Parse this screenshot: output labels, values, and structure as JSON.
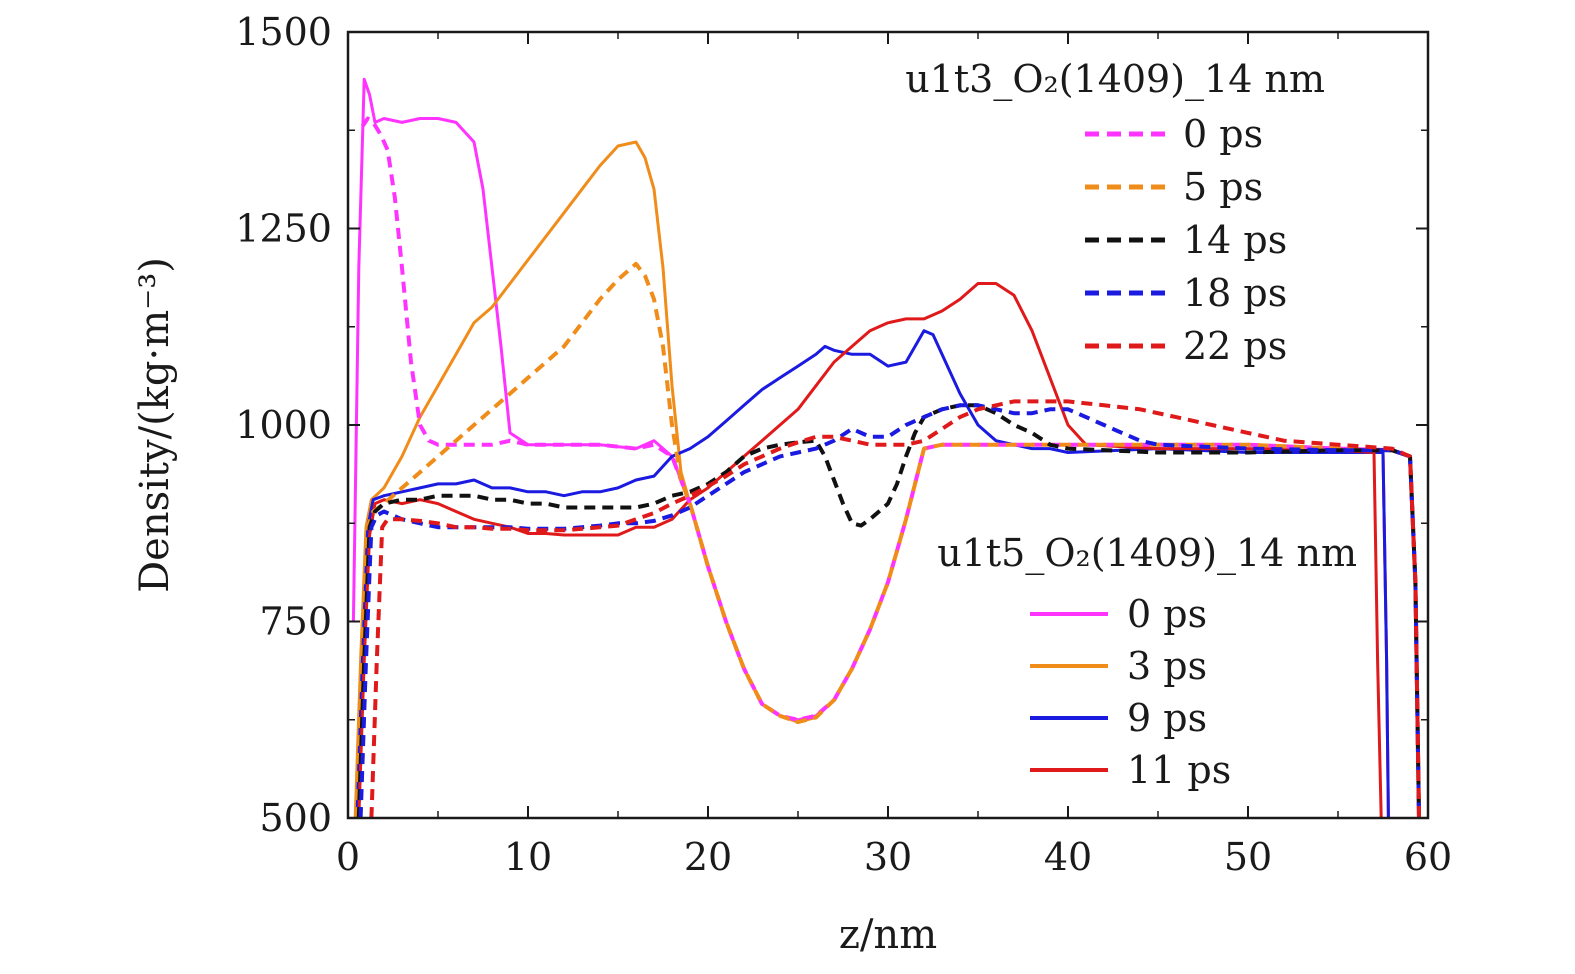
{
  "chart_data": {
    "type": "line",
    "title": "",
    "xlabel": "z/nm",
    "ylabel": "Density/(kg·m⁻³)",
    "xlim": [
      0,
      60
    ],
    "ylim": [
      500,
      1500
    ],
    "xticks": [
      "0",
      "10",
      "20",
      "30",
      "40",
      "50",
      "60"
    ],
    "yticks": [
      "500",
      "750",
      "1000",
      "1250",
      "1500"
    ],
    "grid": false,
    "legend_groups": [
      {
        "title": "u1t3_O₂(1409)_14 nm",
        "placement": "top-right",
        "style": "dashed",
        "entries": [
          "0 ps",
          "5 ps",
          "14 ps",
          "18 ps",
          "22 ps"
        ]
      },
      {
        "title": "u1t5_O₂(1409)_14 nm",
        "placement": "lower-right",
        "style": "solid",
        "entries": [
          "0 ps",
          "3 ps",
          "9 ps",
          "11 ps"
        ]
      }
    ],
    "series": [
      {
        "name": "0 ps",
        "group": "u1t5_O₂(1409)_14 nm",
        "style": "solid",
        "color": "#ff33ff",
        "x": [
          0.3,
          0.6,
          0.9,
          1.2,
          1.5,
          2,
          3,
          4,
          5,
          6,
          7,
          7.5,
          8,
          8.5,
          9,
          10,
          12,
          14,
          16,
          17,
          18,
          19,
          20,
          21,
          22,
          23,
          24,
          25,
          26,
          27,
          28,
          29,
          30,
          31,
          32,
          33,
          35,
          40,
          45,
          50,
          55,
          57.5,
          57.7,
          57.8
        ],
        "y": [
          750,
          1200,
          1440,
          1420,
          1385,
          1390,
          1385,
          1390,
          1390,
          1385,
          1360,
          1300,
          1200,
          1100,
          990,
          975,
          975,
          975,
          970,
          980,
          960,
          900,
          820,
          750,
          690,
          645,
          630,
          625,
          630,
          650,
          690,
          740,
          800,
          880,
          970,
          975,
          975,
          975,
          975,
          975,
          970,
          965,
          700,
          500
        ]
      },
      {
        "name": "3 ps",
        "group": "u1t5_O₂(1409)_14 nm",
        "style": "solid",
        "color": "#f08c1a",
        "x": [
          0.4,
          0.7,
          1,
          1.3,
          2,
          3,
          4,
          5,
          6,
          7,
          8,
          9,
          10,
          11,
          12,
          13,
          14,
          15,
          16,
          16.5,
          17,
          17.5,
          18,
          18.5,
          19,
          20,
          21,
          22,
          23,
          24,
          25,
          26,
          27,
          28,
          29,
          30,
          31,
          32,
          33,
          35,
          40,
          45,
          50,
          55,
          57.5,
          57.7,
          57.8
        ],
        "y": [
          500,
          700,
          870,
          905,
          920,
          960,
          1010,
          1050,
          1090,
          1130,
          1150,
          1180,
          1210,
          1240,
          1270,
          1300,
          1330,
          1355,
          1360,
          1340,
          1300,
          1200,
          1050,
          940,
          900,
          820,
          750,
          690,
          645,
          630,
          622,
          628,
          650,
          690,
          740,
          800,
          880,
          970,
          975,
          975,
          975,
          975,
          975,
          970,
          965,
          700,
          500
        ]
      },
      {
        "name": "9 ps",
        "group": "u1t5_O₂(1409)_14 nm",
        "style": "solid",
        "color": "#1a1ae0",
        "x": [
          0.5,
          0.8,
          1.1,
          1.4,
          2,
          3,
          4,
          5,
          6,
          7,
          8,
          9,
          10,
          11,
          12,
          13,
          14,
          15,
          16,
          17,
          18,
          19,
          20,
          21,
          22,
          23,
          24,
          25,
          26,
          26.5,
          27,
          28,
          29,
          30,
          31,
          32,
          32.5,
          33,
          34,
          35,
          36,
          37,
          38,
          39,
          40,
          45,
          50,
          55,
          57.5,
          57.7,
          57.8
        ],
        "y": [
          500,
          700,
          870,
          905,
          910,
          915,
          920,
          925,
          925,
          930,
          920,
          920,
          915,
          915,
          910,
          915,
          915,
          920,
          930,
          935,
          960,
          970,
          985,
          1005,
          1025,
          1045,
          1060,
          1075,
          1090,
          1100,
          1095,
          1090,
          1090,
          1075,
          1080,
          1120,
          1115,
          1090,
          1040,
          1000,
          980,
          975,
          970,
          970,
          965,
          970,
          965,
          965,
          965,
          700,
          500
        ]
      },
      {
        "name": "11 ps",
        "group": "u1t5_O₂(1409)_14 nm",
        "style": "solid",
        "color": "#e01a1a",
        "x": [
          0.6,
          0.9,
          1.2,
          1.5,
          2,
          3,
          4,
          5,
          6,
          7,
          8,
          9,
          10,
          11,
          12,
          13,
          14,
          15,
          16,
          17,
          18,
          19,
          20,
          21,
          22,
          23,
          24,
          25,
          26,
          27,
          28,
          29,
          30,
          31,
          32,
          33,
          34,
          35,
          36,
          37,
          38,
          39,
          40,
          41,
          45,
          50,
          55,
          57,
          57.2,
          57.4
        ],
        "y": [
          500,
          700,
          860,
          900,
          905,
          900,
          905,
          900,
          890,
          880,
          875,
          870,
          862,
          862,
          860,
          860,
          860,
          860,
          870,
          870,
          880,
          905,
          920,
          940,
          960,
          980,
          1000,
          1020,
          1050,
          1080,
          1100,
          1120,
          1130,
          1135,
          1135,
          1145,
          1160,
          1180,
          1180,
          1165,
          1120,
          1060,
          1000,
          975,
          970,
          970,
          968,
          965,
          700,
          500
        ]
      },
      {
        "name": "0 ps",
        "group": "u1t3_O₂(1409)_14 nm",
        "style": "dashed",
        "color": "#ff33ff",
        "x": [
          0.8,
          1.1,
          1.4,
          1.8,
          2.2,
          2.6,
          3,
          3.5,
          4,
          4.5,
          5,
          6,
          7,
          8,
          9,
          10,
          12,
          14,
          16,
          17,
          18,
          19,
          20,
          21,
          22,
          23,
          24,
          25,
          26,
          27,
          28,
          29,
          30,
          31,
          32,
          33,
          35,
          40,
          45,
          50,
          55,
          58,
          59,
          59.3,
          59.5
        ],
        "y": [
          1380,
          1390,
          1385,
          1370,
          1350,
          1290,
          1200,
          1080,
          1000,
          980,
          975,
          975,
          975,
          975,
          980,
          975,
          975,
          975,
          970,
          975,
          960,
          900,
          820,
          750,
          690,
          645,
          630,
          625,
          630,
          650,
          690,
          740,
          800,
          880,
          970,
          975,
          975,
          975,
          975,
          975,
          970,
          968,
          960,
          800,
          500
        ]
      },
      {
        "name": "5 ps",
        "group": "u1t3_O₂(1409)_14 nm",
        "style": "dashed",
        "color": "#f08c1a",
        "x": [
          0.5,
          0.8,
          1.1,
          1.4,
          2,
          3,
          4,
          5,
          6,
          7,
          8,
          9,
          10,
          11,
          12,
          13,
          14,
          15,
          16,
          16.5,
          17,
          17.5,
          18,
          18.5,
          19,
          20,
          21,
          22,
          23,
          24,
          25,
          26,
          27,
          28,
          29,
          30,
          31,
          32,
          33,
          35,
          40,
          45,
          50,
          55,
          58,
          59,
          59.3,
          59.5
        ],
        "y": [
          500,
          700,
          870,
          890,
          900,
          920,
          940,
          960,
          980,
          1000,
          1020,
          1040,
          1060,
          1080,
          1100,
          1130,
          1160,
          1185,
          1205,
          1190,
          1160,
          1100,
          1000,
          930,
          900,
          820,
          750,
          690,
          645,
          630,
          622,
          628,
          650,
          690,
          740,
          800,
          880,
          970,
          975,
          975,
          975,
          975,
          975,
          970,
          968,
          960,
          800,
          500
        ]
      },
      {
        "name": "14 ps",
        "group": "u1t3_O₂(1409)_14 nm",
        "style": "dashed",
        "color": "#111111",
        "x": [
          0.6,
          0.9,
          1.2,
          1.5,
          2,
          3,
          4,
          5,
          6,
          7,
          8,
          9,
          10,
          11,
          12,
          13,
          14,
          15,
          16,
          17,
          18,
          19,
          20,
          21,
          22,
          23,
          24,
          25,
          26,
          26.5,
          27,
          27.5,
          28,
          28.5,
          29,
          29.5,
          30,
          30.5,
          31,
          31.5,
          32,
          33,
          34,
          35,
          36,
          37,
          38,
          39,
          40,
          45,
          50,
          55,
          58,
          59,
          59.3,
          59.5
        ],
        "y": [
          500,
          700,
          870,
          890,
          900,
          905,
          905,
          910,
          910,
          910,
          905,
          905,
          900,
          900,
          895,
          895,
          895,
          895,
          895,
          900,
          910,
          915,
          925,
          940,
          960,
          970,
          975,
          978,
          980,
          960,
          930,
          900,
          875,
          872,
          880,
          890,
          900,
          925,
          960,
          990,
          1010,
          1020,
          1025,
          1025,
          1015,
          1000,
          990,
          975,
          970,
          965,
          965,
          968,
          968,
          960,
          800,
          500
        ]
      },
      {
        "name": "18 ps",
        "group": "u1t3_O₂(1409)_14 nm",
        "style": "dashed",
        "color": "#1a1ae0",
        "x": [
          0.7,
          1,
          1.3,
          1.6,
          2,
          3,
          4,
          5,
          6,
          7,
          8,
          9,
          10,
          11,
          12,
          13,
          14,
          15,
          16,
          17,
          18,
          19,
          20,
          21,
          22,
          23,
          24,
          25,
          26,
          27,
          28,
          29,
          30,
          31,
          32,
          33,
          34,
          35,
          36,
          37,
          38,
          39,
          40,
          41,
          42,
          43,
          44,
          45,
          50,
          55,
          58,
          59,
          59.3,
          59.5
        ],
        "y": [
          500,
          700,
          870,
          885,
          890,
          880,
          875,
          870,
          870,
          870,
          870,
          870,
          868,
          868,
          868,
          870,
          872,
          875,
          875,
          878,
          885,
          895,
          910,
          925,
          940,
          950,
          960,
          965,
          970,
          980,
          995,
          985,
          985,
          1000,
          1010,
          1020,
          1025,
          1025,
          1020,
          1015,
          1015,
          1020,
          1020,
          1010,
          1000,
          990,
          980,
          975,
          970,
          968,
          968,
          960,
          800,
          500
        ]
      },
      {
        "name": "22 ps",
        "group": "u1t3_O₂(1409)_14 nm",
        "style": "dashed",
        "color": "#e01a1a",
        "x": [
          1.3,
          1.6,
          1.9,
          2.2,
          3,
          4,
          5,
          6,
          7,
          8,
          9,
          10,
          11,
          12,
          13,
          14,
          15,
          16,
          17,
          18,
          19,
          20,
          21,
          22,
          23,
          24,
          25,
          26,
          27,
          28,
          29,
          30,
          31,
          32,
          33,
          34,
          35,
          36,
          37,
          38,
          39,
          40,
          42,
          44,
          46,
          48,
          50,
          52,
          55,
          58,
          59,
          59.3,
          59.5
        ],
        "y": [
          500,
          700,
          870,
          880,
          880,
          878,
          875,
          870,
          870,
          868,
          868,
          866,
          866,
          866,
          868,
          870,
          872,
          880,
          888,
          900,
          910,
          922,
          935,
          950,
          960,
          970,
          978,
          985,
          985,
          980,
          975,
          975,
          975,
          980,
          995,
          1010,
          1020,
          1025,
          1030,
          1030,
          1030,
          1030,
          1025,
          1020,
          1010,
          1000,
          990,
          980,
          975,
          970,
          960,
          800,
          500
        ]
      }
    ]
  }
}
